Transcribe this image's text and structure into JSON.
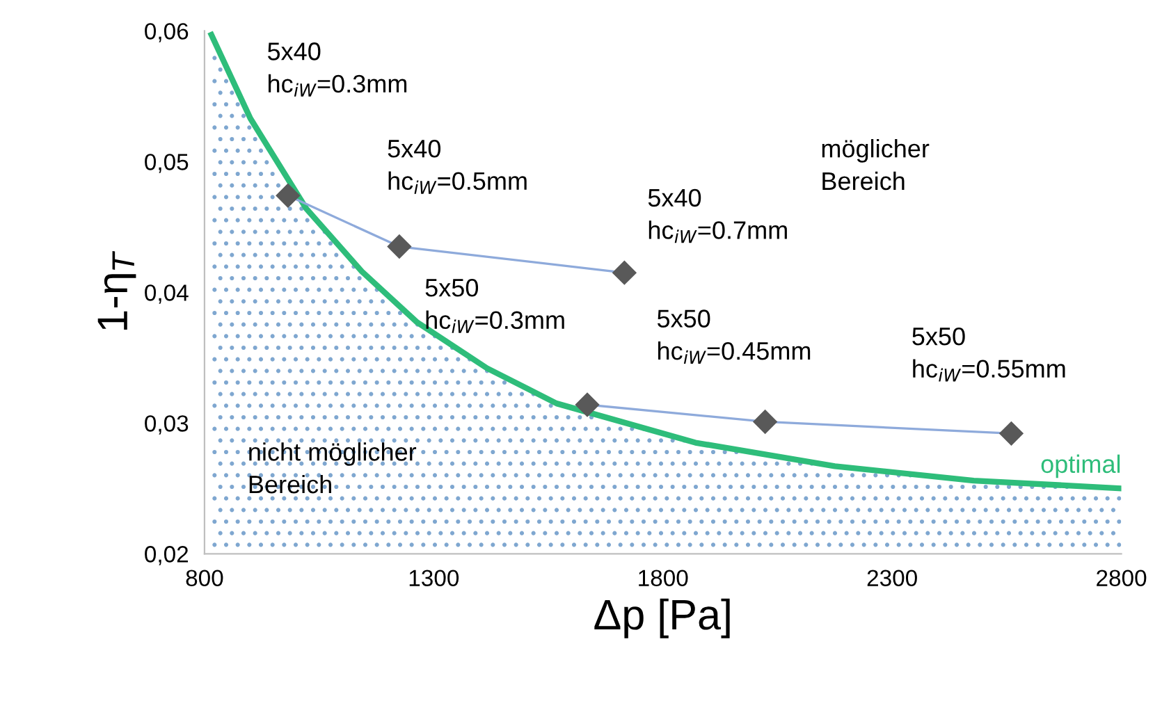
{
  "chart_data": {
    "type": "line",
    "xlabel": "Δp [Pa]",
    "ylabel": "1-η$_{T}$",
    "xlim": [
      800,
      2800
    ],
    "xticks": [
      800,
      1300,
      1800,
      2300,
      2800
    ],
    "ylim": [
      0.02,
      0.06
    ],
    "yticks": [
      {
        "value": 0.02,
        "label": "0,02"
      },
      {
        "value": 0.03,
        "label": "0,03"
      },
      {
        "value": 0.04,
        "label": "0,04"
      },
      {
        "value": 0.05,
        "label": "0,05"
      },
      {
        "value": 0.06,
        "label": "0,06"
      }
    ],
    "grid": false,
    "legend": false,
    "series": [
      {
        "type": "area",
        "name": "optimal",
        "color": "#2ebd7a",
        "marker": "none",
        "x": [
          815,
          900,
          1022,
          1143,
          1264,
          1416,
          1568,
          1871,
          2175,
          2478,
          2800
        ],
        "values": [
          0.0597,
          0.0533,
          0.0464,
          0.0416,
          0.0377,
          0.0342,
          0.0315,
          0.0285,
          0.0267,
          0.0256,
          0.025
        ]
      },
      {
        "color": "#8eaadb",
        "marker": "diamond",
        "x": [
          982,
          1225,
          1716
        ],
        "values": [
          0.0474,
          0.0435,
          0.0415
        ]
      },
      {
        "color": "#8eaadb",
        "marker": "diamond",
        "x": [
          1635,
          2023,
          2560
        ],
        "values": [
          0.0314,
          0.0301,
          0.0292
        ]
      }
    ],
    "annotations": [
      "5x40\nhc$_{iW}$=0.3mm",
      "5x40\nhc$_{iW}$=0.5mm",
      "5x40\nhc$_{iW}$=0.7mm",
      "5x50\nhc$_{iW}$=0.3mm",
      "5x50\nhc$_{iW}$=0.45mm",
      "5x50\nhc$_{iW}$=0.55mm",
      "möglicher\nBereich",
      "nicht möglicher\nBereich"
    ]
  }
}
